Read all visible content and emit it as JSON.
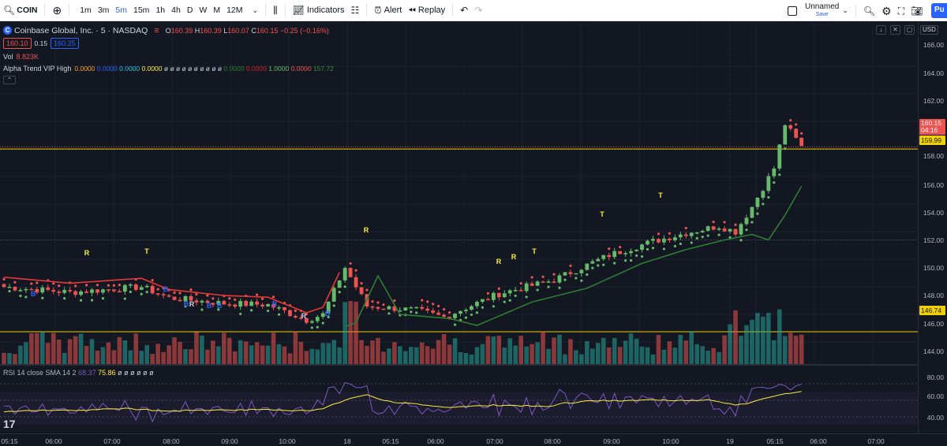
{
  "toolbar": {
    "symbol": "COIN",
    "timeframes": [
      "1m",
      "3m",
      "5m",
      "15m",
      "1h",
      "4h",
      "D",
      "W",
      "M",
      "12M"
    ],
    "active_timeframe": "5m",
    "indicators_label": "Indicators",
    "alert_label": "Alert",
    "replay_label": "Replay",
    "layout_name": "Unnamed",
    "layout_status": "Save",
    "publish_label": "Pu"
  },
  "legend": {
    "title": "Coinbase Global, Inc. · 5 · NASDAQ",
    "logo_letter": "C",
    "open_label": "O",
    "open": "160.39",
    "high_label": "H",
    "high": "160.39",
    "low_label": "L",
    "low": "160.07",
    "close_label": "C",
    "close": "160.15",
    "change": "−0.25 (−0.16%)",
    "bid": "160.10",
    "spread": "0.15",
    "ask": "160.25",
    "vol_label": "Vol",
    "vol_value": "8.823K",
    "indicator_name": "Alpha Trend VIP High",
    "indicator_values": [
      {
        "text": "0.0000",
        "color": "#f5a623"
      },
      {
        "text": "0.0000",
        "color": "#2962ff"
      },
      {
        "text": "0.0000",
        "color": "#26c6da"
      },
      {
        "text": "0.0000",
        "color": "#ffeb3b"
      },
      {
        "text": "0.0000",
        "color": "#2e7d32"
      },
      {
        "text": "0.0000",
        "color": "#c62828"
      },
      {
        "text": "1.0000",
        "color": "#66bb6a"
      },
      {
        "text": "0.0000",
        "color": "#ef5350"
      },
      {
        "text": "157.72",
        "color": "#388e3c"
      }
    ],
    "empty_glyph": "ø ø ø ø ø ø ø ø ø ø"
  },
  "price_axis": {
    "currency": "USD",
    "labels": [
      "166.00",
      "164.00",
      "162.00",
      "158.00",
      "156.00",
      "154.00",
      "152.00",
      "150.00",
      "148.00",
      "146.00",
      "144.00"
    ],
    "current_price": "160.15",
    "countdown": "04:16",
    "line_high": "159.99",
    "line_low": "146.74"
  },
  "rsi": {
    "name": "RSI 14 close SMA 14 2",
    "value1": "68.37",
    "value2": "75.86",
    "empty_glyph": "ø ø ø ø ø ø",
    "labels": [
      "80.00",
      "60.00",
      "40.00"
    ]
  },
  "time_axis": {
    "labels": [
      "05:15",
      "06:00",
      "07:00",
      "08:00",
      "09:00",
      "10:00",
      "18",
      "05:15",
      "06:00",
      "07:00",
      "08:00",
      "09:00",
      "10:00",
      "19",
      "05:15",
      "06:00",
      "07:00"
    ]
  },
  "signals": {
    "buy": "B",
    "reversal": "R",
    "take": "T"
  },
  "colors": {
    "up": "#66bb6a",
    "down": "#ef5350",
    "vol_up": "#26a69a",
    "vol_down": "#ef5350",
    "trend_line_down": "#e53935",
    "trend_line_up": "#2e7d32",
    "level_line": "#f0d000"
  }
}
